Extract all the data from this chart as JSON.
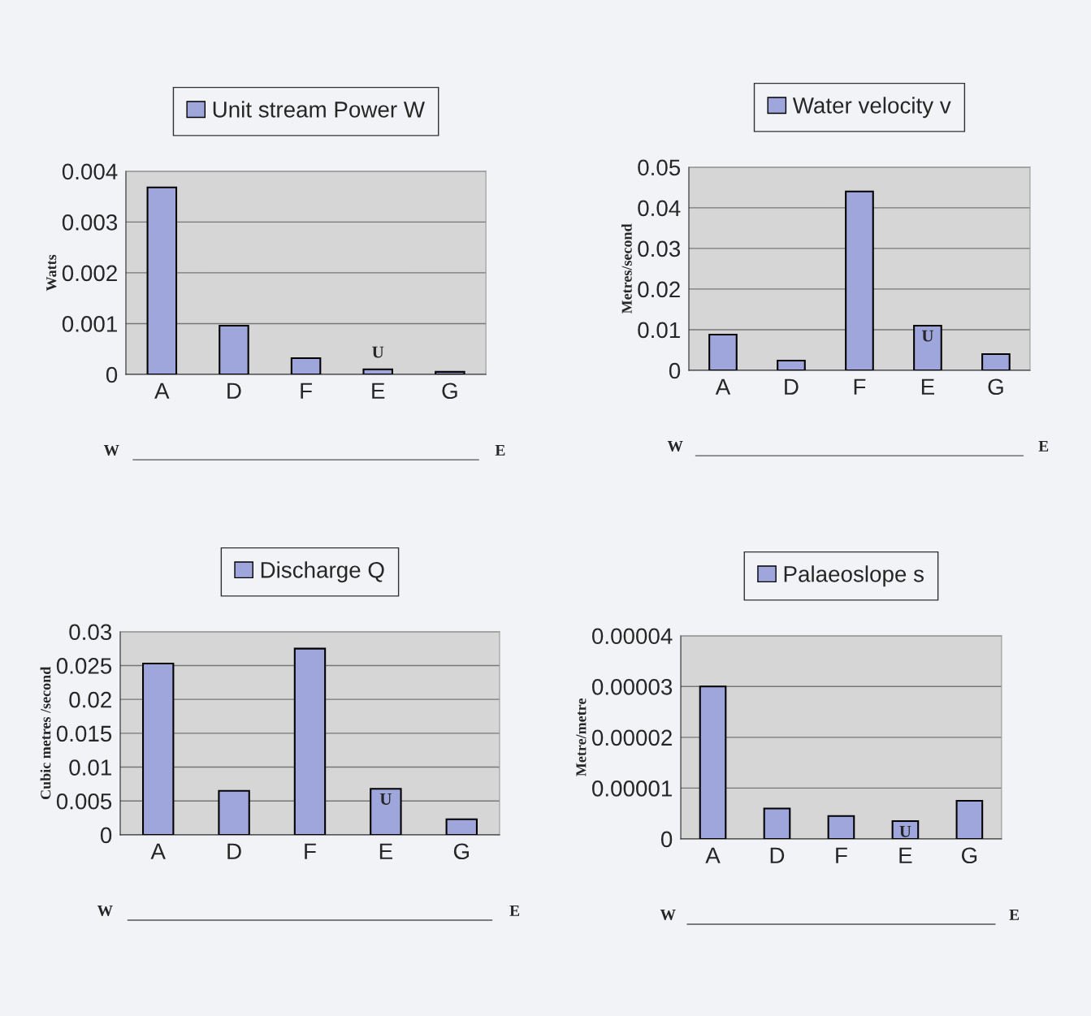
{
  "chart_data": [
    {
      "type": "bar",
      "ylabel": "Watts",
      "categories": [
        "A",
        "D",
        "F",
        "E",
        "G"
      ],
      "series": [
        {
          "name": "Unit stream Power W",
          "color": "#9fa6dc",
          "values": [
            0.00368,
            0.00096,
            0.00032,
            0.0001,
            5e-05
          ]
        }
      ],
      "ylim": [
        0,
        0.004
      ],
      "yticks": [
        0,
        0.001,
        0.002,
        0.003,
        0.004
      ],
      "grid": "y",
      "legend": "top",
      "annotations": [
        "U",
        "W",
        "E"
      ]
    },
    {
      "type": "bar",
      "ylabel": "Metres/second",
      "categories": [
        "A",
        "D",
        "F",
        "E",
        "G"
      ],
      "series": [
        {
          "name": "Water velocity v",
          "color": "#9fa6dc",
          "values": [
            0.0088,
            0.0024,
            0.044,
            0.011,
            0.004
          ]
        }
      ],
      "ylim": [
        0,
        0.05
      ],
      "yticks": [
        0,
        0.01,
        0.02,
        0.03,
        0.04,
        0.05
      ],
      "grid": "y",
      "legend": "top",
      "annotations": [
        "U",
        "W",
        "E"
      ]
    },
    {
      "type": "bar",
      "ylabel": "Cubic metres /second",
      "categories": [
        "A",
        "D",
        "F",
        "E",
        "G"
      ],
      "series": [
        {
          "name": "Discharge Q",
          "color": "#9fa6dc",
          "values": [
            0.0253,
            0.0065,
            0.0275,
            0.0068,
            0.0023
          ]
        }
      ],
      "ylim": [
        0,
        0.03
      ],
      "yticks": [
        0,
        0.005,
        0.01,
        0.015,
        0.02,
        0.025,
        0.03
      ],
      "grid": "y",
      "legend": "top",
      "annotations": [
        "U",
        "W",
        "E"
      ]
    },
    {
      "type": "bar",
      "ylabel": "Metre/metre",
      "categories": [
        "A",
        "D",
        "F",
        "E",
        "G"
      ],
      "series": [
        {
          "name": "Palaeoslope s",
          "color": "#9fa6dc",
          "values": [
            3e-05,
            6e-06,
            4.5e-06,
            3.5e-06,
            7.5e-06
          ]
        }
      ],
      "ylim": [
        0,
        4e-05
      ],
      "yticks": [
        0,
        {
          "value": 1e-05,
          "label": "0.00001"
        },
        {
          "value": 2e-05,
          "label": "0.00002"
        },
        {
          "value": 3e-05,
          "label": "0.00003"
        },
        {
          "value": 4e-05,
          "label": "0.00004"
        }
      ],
      "grid": "y",
      "legend": "top",
      "annotations": [
        "U",
        "W",
        "E"
      ]
    }
  ]
}
